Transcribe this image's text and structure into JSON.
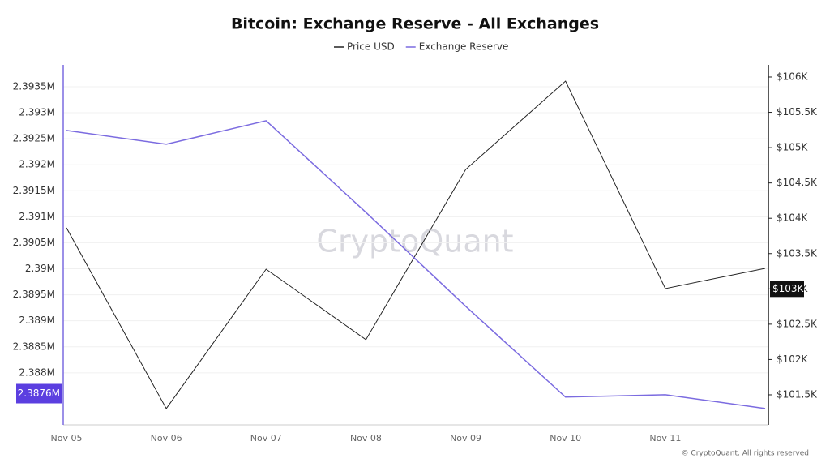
{
  "chart_data": {
    "type": "line",
    "title": "Bitcoin: Exchange Reserve - All Exchanges",
    "watermark": "CryptoQuant",
    "footer": "© CryptoQuant. All rights reserved",
    "categories": [
      "Nov 05",
      "Nov 06",
      "Nov 07",
      "Nov 08",
      "Nov 09",
      "Nov 10",
      "Nov 11",
      null
    ],
    "series": [
      {
        "name": "Price USD",
        "color": "#222222",
        "axis": "y2",
        "values": [
          103864,
          101305,
          103279,
          102281,
          104691,
          105942,
          103004,
          103291
        ]
      },
      {
        "name": "Exchange Reserve",
        "color": "#7b6be0",
        "values": [
          2392659,
          2392394,
          2392846,
          2391085,
          2389278,
          2387533,
          2387579,
          2387314
        ]
      }
    ],
    "ylim": [
      2387000,
      2393920
    ],
    "yticks": [
      {
        "value": 2388000,
        "label": "2.388M"
      },
      {
        "value": 2388500,
        "label": "2.3885M"
      },
      {
        "value": 2389000,
        "label": "2.389M"
      },
      {
        "value": 2389500,
        "label": "2.3895M"
      },
      {
        "value": 2390000,
        "label": "2.39M"
      },
      {
        "value": 2390500,
        "label": "2.3905M"
      },
      {
        "value": 2391000,
        "label": "2.391M"
      },
      {
        "value": 2391500,
        "label": "2.3915M"
      },
      {
        "value": 2392000,
        "label": "2.392M"
      },
      {
        "value": 2392500,
        "label": "2.3925M"
      },
      {
        "value": 2393000,
        "label": "2.393M"
      },
      {
        "value": 2393500,
        "label": "2.3935M"
      }
    ],
    "y2lim": [
      101075,
      106172
    ],
    "y2ticks": [
      {
        "value": 101500,
        "label": "$101.5K"
      },
      {
        "value": 102000,
        "label": "$102K"
      },
      {
        "value": 102500,
        "label": "$102.5K"
      },
      {
        "value": 103000,
        "label": "$103K"
      },
      {
        "value": 103500,
        "label": "$103.5K"
      },
      {
        "value": 104000,
        "label": "$104K"
      },
      {
        "value": 104500,
        "label": "$104.5K"
      },
      {
        "value": 105000,
        "label": "$105K"
      },
      {
        "value": 105500,
        "label": "$105.5K"
      },
      {
        "value": 106000,
        "label": "$106K"
      }
    ],
    "annotations": [
      {
        "axis": "y",
        "value": 2387600,
        "label": "2.3876M"
      },
      {
        "axis": "y2",
        "value": 103000,
        "label": "$103K"
      }
    ],
    "grid": true
  }
}
